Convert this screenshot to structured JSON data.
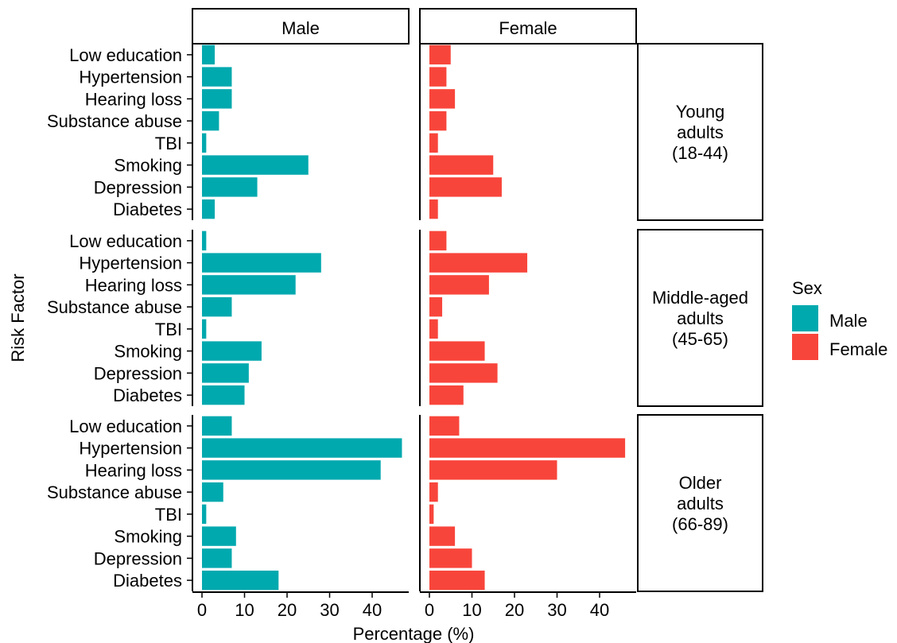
{
  "chart_data": {
    "type": "bar",
    "orientation": "horizontal",
    "xlabel": "Percentage (%)",
    "ylabel": "Risk Factor",
    "xlim": [
      0,
      48
    ],
    "xticks": [
      0,
      10,
      20,
      30,
      40
    ],
    "grid": false,
    "legend_position": "right",
    "columns": [
      "Male",
      "Female"
    ],
    "rows": [
      {
        "lines": [
          "Young",
          "adults",
          "(18-44)"
        ]
      },
      {
        "lines": [
          "Middle-aged",
          "adults",
          "(45-65)"
        ]
      },
      {
        "lines": [
          "Older",
          "adults",
          "(66-89)"
        ]
      }
    ],
    "categories": [
      "Low education",
      "Hypertension",
      "Hearing loss",
      "Substance abuse",
      "TBI",
      "Smoking",
      "Depression",
      "Diabetes"
    ],
    "colors": {
      "Male": "#00A9AE",
      "Female": "#F8453B"
    },
    "legend": {
      "title": "Sex",
      "entries": [
        "Male",
        "Female"
      ]
    },
    "values": {
      "Male": [
        [
          3,
          7,
          7,
          4,
          1,
          25,
          13,
          3
        ],
        [
          1,
          28,
          22,
          7,
          1,
          14,
          11,
          10
        ],
        [
          7,
          47,
          42,
          5,
          1,
          8,
          7,
          18
        ]
      ],
      "Female": [
        [
          5,
          4,
          6,
          4,
          2,
          15,
          17,
          2
        ],
        [
          4,
          23,
          14,
          3,
          2,
          13,
          16,
          8
        ],
        [
          7,
          46,
          30,
          2,
          1,
          6,
          10,
          13
        ]
      ]
    }
  }
}
